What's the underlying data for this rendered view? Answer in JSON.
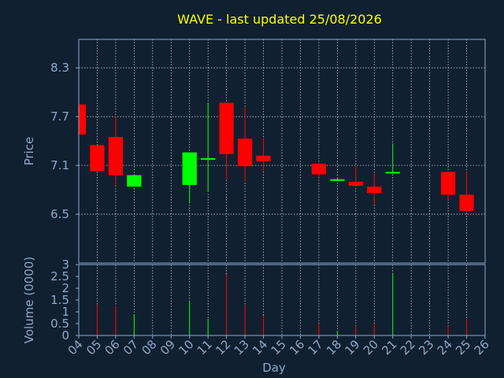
{
  "colors": {
    "background": "#102030",
    "axis": "#8fa8c8",
    "title": "#ffff00",
    "up": "#00ff00",
    "down": "#ff0000",
    "grid": "#ffffff"
  },
  "chart_data": {
    "type": "candlestick",
    "title": "WAVE - last updated 25/08/2026",
    "xlabel": "Day",
    "ylabel": "Price",
    "volume_label": "Volume (0000)",
    "grid": true,
    "x_ticks": [
      "04",
      "05",
      "06",
      "07",
      "08",
      "09",
      "10",
      "11",
      "12",
      "13",
      "14",
      "15",
      "16",
      "17",
      "18",
      "19",
      "20",
      "21",
      "22",
      "23",
      "24",
      "25",
      "26"
    ],
    "x_range": [
      4,
      26
    ],
    "price_ticks": [
      "6.5",
      "7.1",
      "7.7",
      "8.3"
    ],
    "price_range": [
      5.9,
      8.65
    ],
    "volume_ticks": [
      "0",
      "0.5",
      "1",
      "1.5",
      "2",
      "2.5",
      "3"
    ],
    "volume_range": [
      0,
      3
    ],
    "candles": [
      {
        "day": 4,
        "open": 7.85,
        "high": 7.85,
        "low": 7.48,
        "close": 7.48,
        "volume": 0
      },
      {
        "day": 5,
        "open": 7.35,
        "high": 7.35,
        "low": 7.03,
        "close": 7.03,
        "volume": 1.3
      },
      {
        "day": 6,
        "open": 7.45,
        "high": 7.7,
        "low": 6.85,
        "close": 6.98,
        "volume": 1.25
      },
      {
        "day": 7,
        "open": 6.84,
        "high": 6.98,
        "low": 6.84,
        "close": 6.98,
        "volume": 0.9
      },
      {
        "day": 10,
        "open": 6.86,
        "high": 7.26,
        "low": 6.63,
        "close": 7.26,
        "volume": 1.45
      },
      {
        "day": 11,
        "open": 7.17,
        "high": 7.87,
        "low": 6.78,
        "close": 7.19,
        "volume": 0.7
      },
      {
        "day": 12,
        "open": 7.87,
        "high": 7.87,
        "low": 6.93,
        "close": 7.24,
        "volume": 2.6
      },
      {
        "day": 13,
        "open": 7.43,
        "high": 7.81,
        "low": 6.91,
        "close": 7.09,
        "volume": 1.3
      },
      {
        "day": 14,
        "open": 7.22,
        "high": 7.44,
        "low": 7.03,
        "close": 7.15,
        "volume": 0.85
      },
      {
        "day": 17,
        "open": 7.12,
        "high": 7.12,
        "low": 6.96,
        "close": 6.99,
        "volume": 0.5
      },
      {
        "day": 18,
        "open": 6.91,
        "high": 6.94,
        "low": 6.91,
        "close": 6.93,
        "volume": 0.15
      },
      {
        "day": 19,
        "open": 6.9,
        "high": 7.09,
        "low": 6.84,
        "close": 6.85,
        "volume": 0.4
      },
      {
        "day": 20,
        "open": 6.84,
        "high": 7.0,
        "low": 6.62,
        "close": 6.76,
        "volume": 0.5
      },
      {
        "day": 21,
        "open": 7.01,
        "high": 7.37,
        "low": 7.0,
        "close": 7.02,
        "volume": 2.6
      },
      {
        "day": 24,
        "open": 7.02,
        "high": 7.02,
        "low": 6.68,
        "close": 6.74,
        "volume": 0.4
      },
      {
        "day": 25,
        "open": 6.74,
        "high": 7.03,
        "low": 6.54,
        "close": 6.54,
        "volume": 0.7
      }
    ]
  }
}
